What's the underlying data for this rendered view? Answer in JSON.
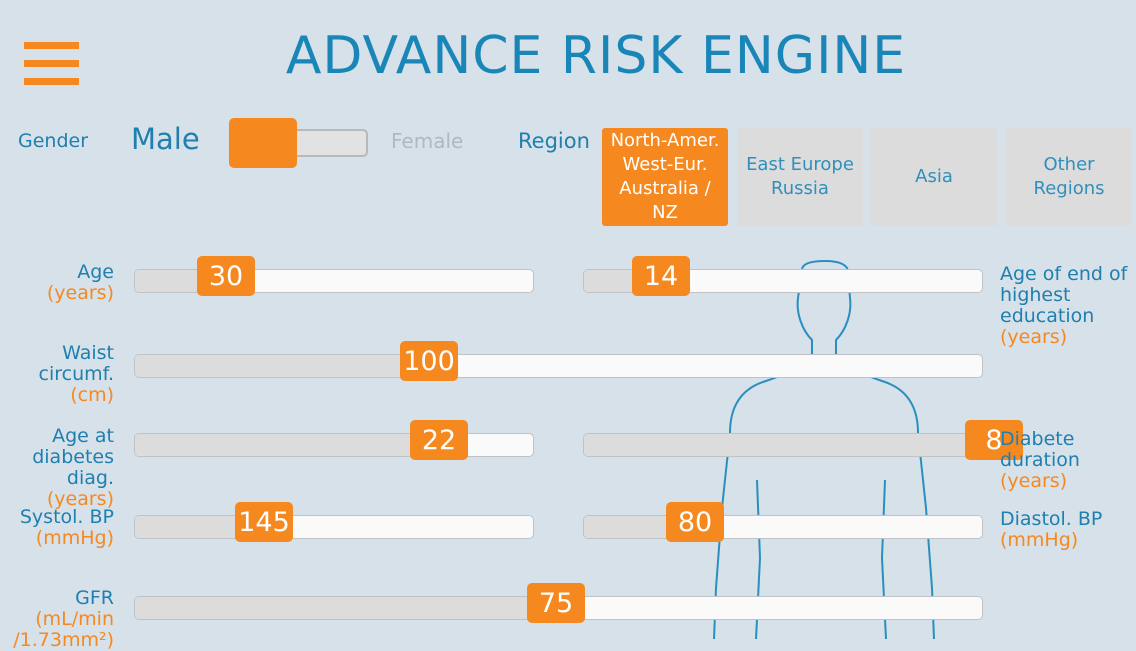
{
  "header": {
    "title": "ADVANCE RISK ENGINE"
  },
  "gender": {
    "label": "Gender",
    "male": "Male",
    "female": "Female"
  },
  "region": {
    "label": "Region",
    "options": [
      {
        "label": "North-Amer. West-Eur. Australia / NZ",
        "active": true
      },
      {
        "label": "East Europe Russia",
        "active": false
      },
      {
        "label": "Asia",
        "active": false
      },
      {
        "label": "Other Regions",
        "active": false
      }
    ]
  },
  "sliders": {
    "age": {
      "label": "Age",
      "unit": "(years)",
      "value": "30"
    },
    "education": {
      "label": "Age of end of highest education",
      "unit": "(years)",
      "value": "14"
    },
    "waist": {
      "label": "Waist circumf.",
      "unit": "(cm)",
      "value": "100"
    },
    "diag_age": {
      "label": "Age at diabetes diag.",
      "unit": "(years)",
      "value": "22"
    },
    "duration": {
      "label": "Diabete duration",
      "unit": "(years)",
      "value": "8"
    },
    "systolic": {
      "label": "Systol. BP",
      "unit": "(mmHg)",
      "value": "145"
    },
    "diastolic": {
      "label": "Diastol. BP",
      "unit": "(mmHg)",
      "value": "80"
    },
    "gfr": {
      "label": "GFR",
      "unit": "(mL/min /1.73mm²)",
      "value": "75"
    }
  },
  "colors": {
    "accent": "#f5891f",
    "text": "#1f7fae",
    "background": "#d6e1ea"
  }
}
